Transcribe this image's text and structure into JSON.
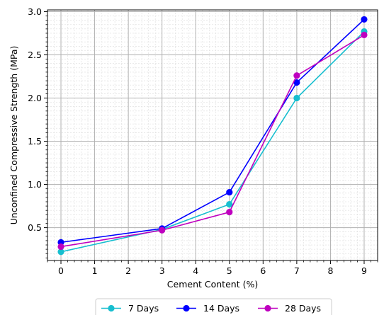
{
  "chart_data": {
    "type": "line",
    "title": "",
    "xlabel": "Cement Content (%)",
    "ylabel": "Unconfined Compressive Strength (MPa)",
    "xlim": [
      -0.4,
      9.4
    ],
    "ylim": [
      0.12,
      3.02
    ],
    "xticks": [
      "0",
      "1",
      "2",
      "3",
      "4",
      "5",
      "6",
      "7",
      "8",
      "9"
    ],
    "yticks": [
      "0.5",
      "1.0",
      "1.5",
      "2.0",
      "2.5",
      "3.0"
    ],
    "grid": true,
    "minor_grid": true,
    "legend_position": "bottom-center",
    "x": [
      0,
      3,
      5,
      7,
      9
    ],
    "series": [
      {
        "name": "7 Days",
        "color": "#17becf",
        "values": [
          0.22,
          0.48,
          0.77,
          2.0,
          2.77
        ]
      },
      {
        "name": "14 Days",
        "color": "#0000ff",
        "values": [
          0.33,
          0.49,
          0.91,
          2.18,
          2.91
        ]
      },
      {
        "name": "28 Days",
        "color": "#bf00bf",
        "values": [
          0.28,
          0.47,
          0.68,
          2.26,
          2.73
        ]
      }
    ]
  }
}
